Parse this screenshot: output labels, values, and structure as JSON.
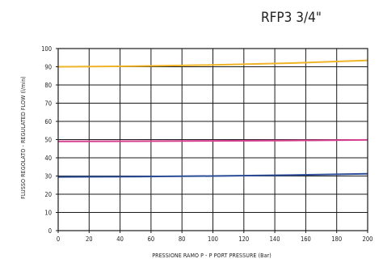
{
  "chart_data": {
    "type": "line",
    "title": "RFP3 3/4\"",
    "xlabel": "PRESSIONE RAMO P - P PORT PRESSURE (Bar)",
    "ylabel": "FLUSSO REGOLATO - REGULATED FLOW (l/min)",
    "xlim": [
      0,
      200
    ],
    "ylim": [
      0,
      100
    ],
    "x_ticks": [
      "0",
      "20",
      "40",
      "60",
      "80",
      "100",
      "120",
      "140",
      "160",
      "180",
      "200"
    ],
    "y_ticks": [
      "0",
      "10",
      "20",
      "30",
      "40",
      "50",
      "60",
      "70",
      "80",
      "90",
      "100"
    ],
    "grid": true,
    "series": [
      {
        "color": "#f0b429",
        "x": [
          0,
          50,
          100,
          150,
          200
        ],
        "y": [
          90,
          90.3,
          91,
          92,
          93.5
        ]
      },
      {
        "color": "#d6408f",
        "x": [
          0,
          50,
          100,
          150,
          200
        ],
        "y": [
          49,
          49.1,
          49.3,
          49.5,
          49.8
        ]
      },
      {
        "color": "#2b4c96",
        "x": [
          0,
          50,
          100,
          150,
          200
        ],
        "y": [
          29.5,
          29.7,
          30,
          30.5,
          31.2
        ]
      }
    ]
  }
}
